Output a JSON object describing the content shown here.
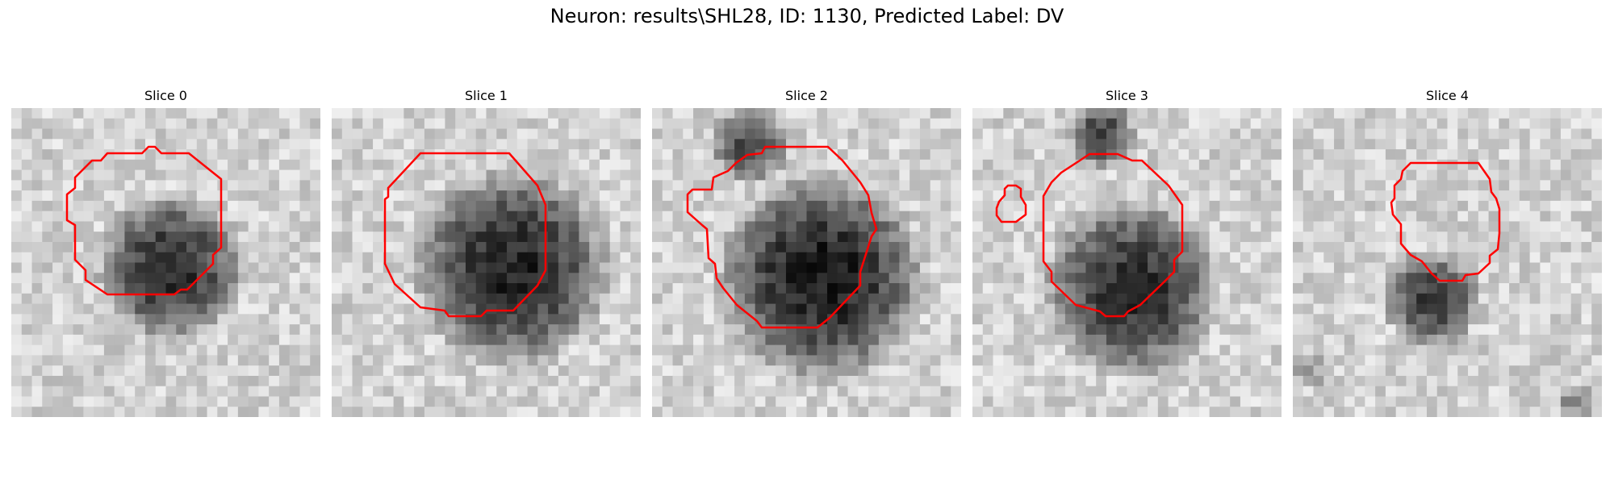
{
  "figure": {
    "title": "Neuron: results\\SHL28, ID: 1130, Predicted Label: DV"
  },
  "panels": [
    {
      "title": "Slice 0"
    },
    {
      "title": "Slice 1"
    },
    {
      "title": "Slice 2"
    },
    {
      "title": "Slice 3"
    },
    {
      "title": "Slice 4"
    }
  ],
  "colors": {
    "contour": "#ff0000",
    "background": "#ffffff"
  }
}
